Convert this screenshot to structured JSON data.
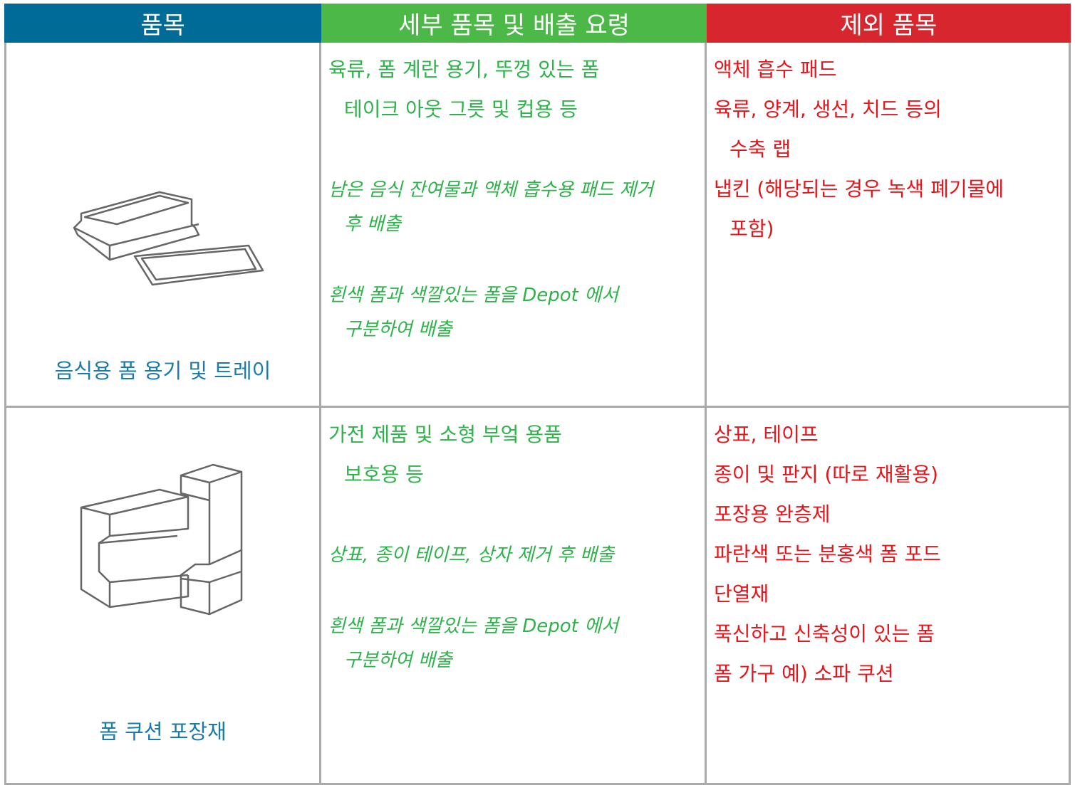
{
  "header": [
    "품목",
    "세부 품목 및 배출 요령",
    "제외 품목"
  ],
  "rows": [
    {
      "item": "음식용 폼 용기 및 트레이",
      "details": [
        [
          "육류, 폼 계란 용기, 뚜껑 있는 폼",
          "테이크 아웃 그릇 및 컵용 등"
        ]
      ],
      "notes": [
        [
          "남은 음식 잔여물과 액체 흡수용 패드 제거",
          "후 배출"
        ],
        [
          "흰색 폼과 색깔있는 폼을 Depot 에서",
          "구분하여 배출"
        ]
      ],
      "excluded": [
        [
          "액체 흡수 패드"
        ],
        [
          "육류, 양계, 생선, 치드 등의",
          "수축 랩"
        ],
        [
          "냅킨 (해당되는 경우 녹색 폐기물에",
          "포함)"
        ]
      ]
    },
    {
      "item": "폼 쿠션 포장재",
      "details": [
        [
          "가전 제품 및 소형 부엌 용품",
          "보호용 등"
        ]
      ],
      "notes": [
        [
          "상표, 종이 테이프, 상자 제거 후 배출"
        ],
        [
          "흰색 폼과 색깔있는 폼을 Depot 에서",
          "구분하여 배출"
        ]
      ],
      "excluded": [
        [
          "상표, 테이프"
        ],
        [
          "종이 및 판지 (따로 재활용)"
        ],
        [
          "포장용 완층제"
        ],
        [
          "파란색 또는 분홍색 폼  포드"
        ],
        [
          "단열재"
        ],
        [
          "푹신하고 신축성이 있는 폼"
        ],
        [
          "폼 가구 예) 소파 쿠션"
        ]
      ]
    }
  ]
}
